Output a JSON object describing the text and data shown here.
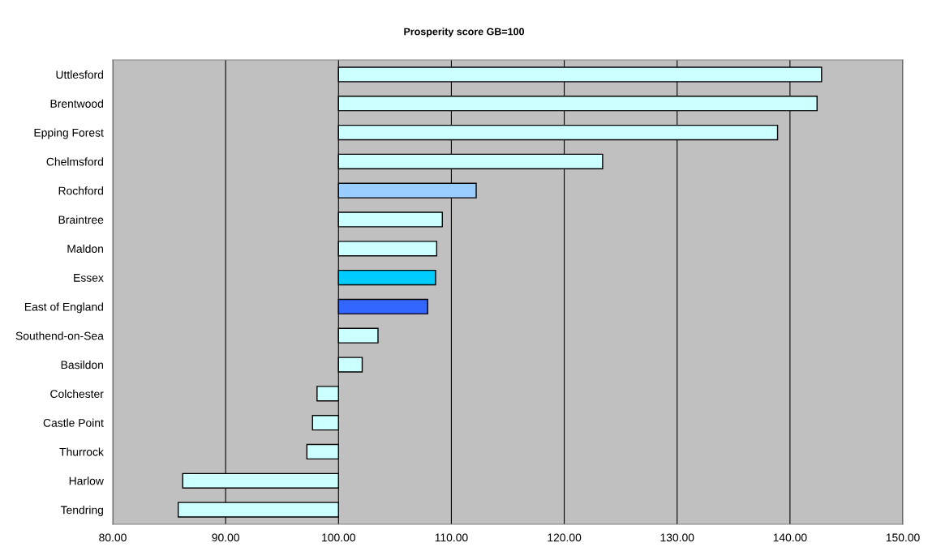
{
  "chart_data": {
    "type": "bar",
    "orientation": "horizontal",
    "title": "Prosperity score GB=100",
    "categories": [
      "Uttlesford",
      "Brentwood",
      "Epping Forest",
      "Chelmsford",
      "Rochford",
      "Braintree",
      "Maldon",
      "Essex",
      "East of England",
      "Southend-on-Sea",
      "Basildon",
      "Colchester",
      "Castle Point",
      "Thurrock",
      "Harlow",
      "Tendring"
    ],
    "base": [
      100,
      100,
      100,
      100,
      100,
      100,
      100,
      100,
      100,
      100,
      100,
      100,
      100,
      100,
      100,
      100
    ],
    "values": [
      42.8,
      42.4,
      38.9,
      23.4,
      12.2,
      9.2,
      8.7,
      8.6,
      7.9,
      3.5,
      2.1,
      -1.9,
      -2.3,
      -2.8,
      -13.8,
      -14.2
    ],
    "colors": [
      "#ccffff",
      "#ccffff",
      "#ccffff",
      "#ccffff",
      "#99ccff",
      "#ccffff",
      "#ccffff",
      "#00ccff",
      "#3366ff",
      "#ccffff",
      "#ccffff",
      "#ccffff",
      "#ccffff",
      "#ccffff",
      "#ccffff",
      "#ccffff"
    ],
    "xlim": [
      80,
      150
    ],
    "xticks": [
      {
        "value": 80,
        "label": "80.00"
      },
      {
        "value": 90,
        "label": "90.00"
      },
      {
        "value": 100,
        "label": "100.00"
      },
      {
        "value": 110,
        "label": "110.00"
      },
      {
        "value": 120,
        "label": "120.00"
      },
      {
        "value": 130,
        "label": "130.00"
      },
      {
        "value": 140,
        "label": "140.00"
      },
      {
        "value": 150,
        "label": "150.00"
      }
    ],
    "grid": "x"
  }
}
